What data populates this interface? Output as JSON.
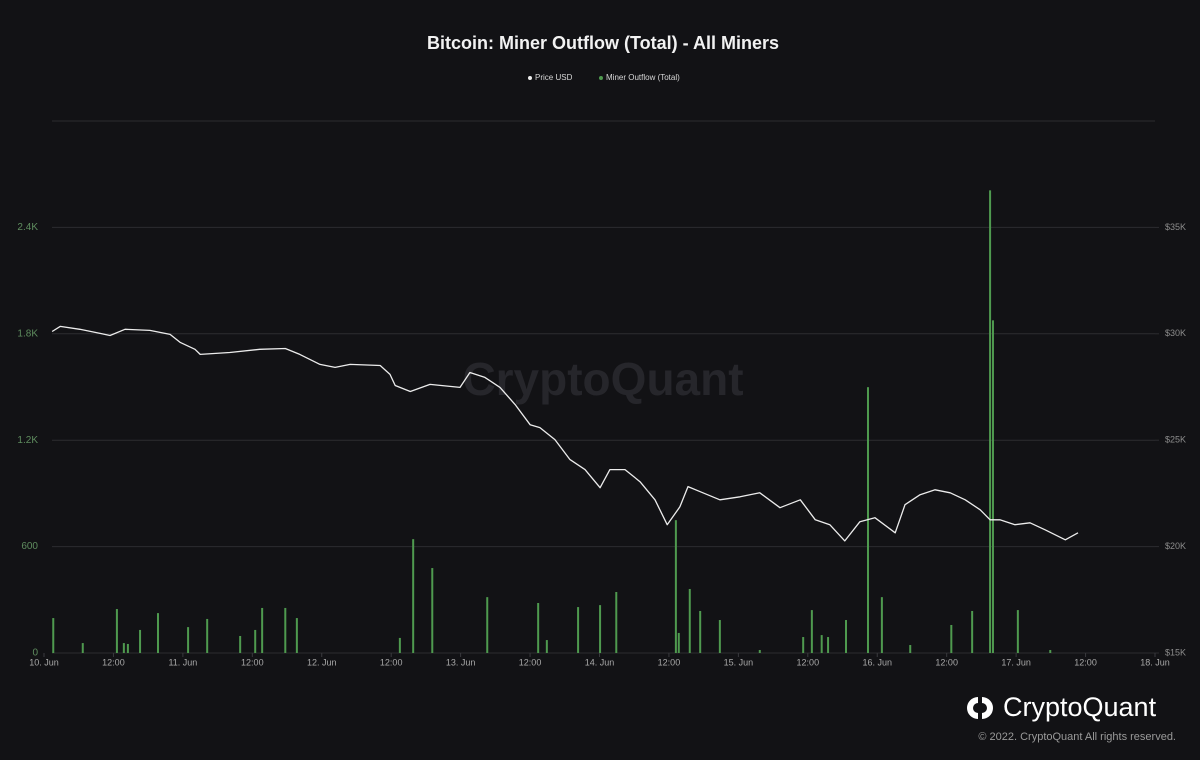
{
  "chart_data": {
    "type": "combo",
    "title": "Bitcoin: Miner Outflow (Total) - All Miners",
    "watermark": "CryptoQuant",
    "brand": "CryptoQuant",
    "copyright": "© 2022. CryptoQuant All rights reserved.",
    "xlim": [
      0,
      192
    ],
    "xticks": [
      {
        "value": 0,
        "label": "10. Jun"
      },
      {
        "value": 12,
        "label": "12:00"
      },
      {
        "value": 24,
        "label": "11. Jun"
      },
      {
        "value": 36,
        "label": "12:00"
      },
      {
        "value": 48,
        "label": "12. Jun"
      },
      {
        "value": 60,
        "label": "12:00"
      },
      {
        "value": 72,
        "label": "13. Jun"
      },
      {
        "value": 84,
        "label": "12:00"
      },
      {
        "value": 96,
        "label": "14. Jun"
      },
      {
        "value": 108,
        "label": "12:00"
      },
      {
        "value": 120,
        "label": "15. Jun"
      },
      {
        "value": 132,
        "label": "12:00"
      },
      {
        "value": 144,
        "label": "16. Jun"
      },
      {
        "value": 156,
        "label": "12:00"
      },
      {
        "value": 168,
        "label": "17. Jun"
      },
      {
        "value": 180,
        "label": "12:00"
      },
      {
        "value": 192,
        "label": "18. Jun"
      }
    ],
    "ylim": [
      0,
      3000
    ],
    "yticks": [
      0,
      600,
      {
        "value": 1200,
        "label": "1.2K"
      },
      {
        "value": 1800,
        "label": "1.8K"
      },
      {
        "value": 2400,
        "label": "2.4K"
      }
    ],
    "y2lim": [
      15000,
      40000
    ],
    "y2ticks": [
      {
        "value": 15000,
        "label": "$15K"
      },
      {
        "value": 20000,
        "label": "$20K"
      },
      {
        "value": 25000,
        "label": "$25K"
      },
      {
        "value": 30000,
        "label": "$30K"
      },
      {
        "value": 35000,
        "label": "$35K"
      }
    ],
    "grid": true,
    "series": [
      {
        "name": "Price USD",
        "type": "line",
        "axis": "y2",
        "color": "#ececec",
        "x": [
          1.4,
          2.8,
          6.2,
          9.7,
          11.4,
          14,
          18.3,
          21.8,
          23.5,
          26.1,
          27,
          32.1,
          37.3,
          41.7,
          44.2,
          47.7,
          50.3,
          52.9,
          58.1,
          59.8,
          60.7,
          63.3,
          66.7,
          71.9,
          73.6,
          76.2,
          78.8,
          81.4,
          84,
          85.7,
          88.3,
          90.9,
          93.5,
          96.1,
          97.8,
          100.4,
          103,
          105.6,
          107.7,
          109.9,
          111.3,
          113.4,
          116.8,
          120.3,
          123.7,
          127.2,
          130.7,
          133.3,
          135.8,
          138.4,
          141,
          143.6,
          147.1,
          148.8,
          151.4,
          154,
          156.6,
          159.2,
          161.8,
          163.5,
          165.2,
          167.8,
          170.4,
          173,
          176.5,
          178.7
        ],
        "values": [
          30110,
          30350,
          30210,
          30020,
          29920,
          30210,
          30160,
          29970,
          29600,
          29270,
          29030,
          29120,
          29270,
          29310,
          29030,
          28560,
          28420,
          28560,
          28510,
          28090,
          27570,
          27290,
          27620,
          27480,
          28180,
          27950,
          27480,
          26680,
          25730,
          25590,
          25030,
          24090,
          23620,
          22770,
          23620,
          23620,
          23050,
          22200,
          21030,
          21870,
          22820,
          22580,
          22200,
          22340,
          22530,
          21830,
          22200,
          21260,
          21030,
          20270,
          21170,
          21360,
          20650,
          21970,
          22440,
          22670,
          22530,
          22200,
          21730,
          21260,
          21260,
          21030,
          21120,
          20790,
          20320,
          20650
        ]
      },
      {
        "name": "Miner Outflow (Total)",
        "type": "bar",
        "color": "#4f9a4f",
        "x": [
          1.6,
          6.7,
          12.6,
          13.8,
          14.5,
          16.6,
          19.7,
          24.9,
          28.2,
          33.9,
          36.5,
          37.7,
          41.7,
          43.7,
          61.5,
          63.8,
          67.1,
          76.6,
          85.4,
          86.9,
          92.3,
          96.1,
          98.9,
          109.2,
          109.7,
          111.6,
          113.4,
          116.8,
          123.7,
          131.2,
          132.7,
          134.4,
          135.5,
          138.6,
          142.4,
          144.8,
          149.7,
          156.8,
          160.4,
          163.5,
          164,
          168.3,
          173.9
        ],
        "values": [
          197,
          56,
          248,
          56,
          51,
          130,
          225,
          146,
          192,
          96,
          130,
          254,
          254,
          197,
          85,
          642,
          479,
          315,
          282,
          73,
          259,
          270,
          344,
          749,
          113,
          361,
          237,
          186,
          17,
          90,
          242,
          101,
          90,
          186,
          1499,
          315,
          45,
          158,
          237,
          2609,
          1876,
          242,
          17
        ]
      }
    ]
  }
}
